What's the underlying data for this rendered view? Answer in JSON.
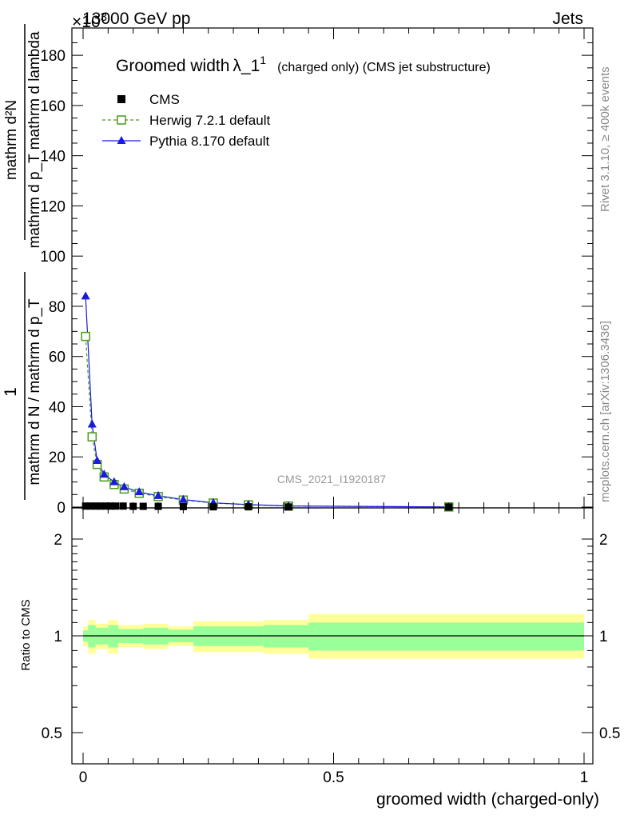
{
  "header": {
    "energy": "13000 GeV pp",
    "process": "Jets",
    "exponent": "×10",
    "exponent_power": "3"
  },
  "side": {
    "rivet": "Rivet 3.1.10, ≥ 400k events",
    "mcplots": "mcplots.cern.ch [arXiv:1306.3436]"
  },
  "watermark": "CMS_2021_I1920187",
  "chart_data": [
    {
      "type": "line",
      "title": "Groomed width λ_1¹ (charged only) (CMS jet substructure)",
      "title_main": "Groomed width",
      "title_lambda": "λ_1",
      "title_sup": "1",
      "title_rest": "(charged only) (CMS jet substructure)",
      "ylabel_top": "1",
      "ylabel_bottom": "mathrm d N / mathrm d p_T",
      "ylabel_frac_num": "mathrm d²N",
      "ylabel_frac_den": "mathrm d p_T mathrm d lambda",
      "xlim": [
        0,
        1
      ],
      "ylim": [
        0,
        190
      ],
      "y_ticks": [
        0,
        20,
        40,
        60,
        80,
        100,
        120,
        140,
        160,
        180
      ],
      "y_unit_scale": "×10³",
      "legend_position": "top-left",
      "series": [
        {
          "name": "CMS",
          "color": "#000000",
          "marker": "filled-square",
          "x": [
            0.005,
            0.015,
            0.025,
            0.035,
            0.045,
            0.055,
            0.065,
            0.08,
            0.1,
            0.12,
            0.15,
            0.2,
            0.26,
            0.33,
            0.41,
            0.73
          ],
          "y": [
            0.4,
            0.4,
            0.4,
            0.4,
            0.4,
            0.4,
            0.4,
            0.4,
            0.3,
            0.3,
            0.3,
            0.2,
            0.1,
            0.1,
            0.05,
            0.01
          ]
        },
        {
          "name": "Herwig 7.2.1 default",
          "color": "#4a9a1a",
          "marker": "open-square",
          "style": "dashed",
          "x": [
            0.005,
            0.018,
            0.028,
            0.042,
            0.062,
            0.082,
            0.112,
            0.15,
            0.2,
            0.26,
            0.33,
            0.41,
            0.73
          ],
          "y": [
            68,
            28,
            17,
            12,
            9,
            7.2,
            5.5,
            4.2,
            2.8,
            1.6,
            0.9,
            0.4,
            0.05
          ]
        },
        {
          "name": "Pythia 8.170 default",
          "color": "#1a1ae0",
          "marker": "filled-triangle",
          "style": "solid",
          "x": [
            0.005,
            0.018,
            0.028,
            0.042,
            0.062,
            0.082,
            0.112,
            0.15,
            0.2,
            0.26,
            0.33,
            0.41,
            0.73
          ],
          "y": [
            84,
            33,
            18.5,
            13,
            10,
            8,
            6,
            4.5,
            3,
            1.7,
            1.0,
            0.45,
            0.05
          ]
        }
      ]
    },
    {
      "type": "area",
      "ylabel": "Ratio to CMS",
      "xlabel": "groomed width (charged-only)",
      "xlim": [
        0,
        1
      ],
      "ylim": [
        0.4,
        2.3
      ],
      "y_scale": "log",
      "x_ticks": [
        0,
        0.5,
        1
      ],
      "x_tick_labels": [
        "0",
        "0.5",
        "1"
      ],
      "y_ticks": [
        0.5,
        1,
        2
      ],
      "y_tick_labels": [
        "0.5",
        "1",
        "2"
      ],
      "reference": 1,
      "bins": [
        {
          "x0": 0.0,
          "x1": 0.01,
          "inner": [
            0.96,
            1.04
          ],
          "outer": [
            0.93,
            1.07
          ]
        },
        {
          "x0": 0.01,
          "x1": 0.025,
          "inner": [
            0.92,
            1.08
          ],
          "outer": [
            0.88,
            1.12
          ]
        },
        {
          "x0": 0.025,
          "x1": 0.05,
          "inner": [
            0.94,
            1.06
          ],
          "outer": [
            0.91,
            1.09
          ]
        },
        {
          "x0": 0.05,
          "x1": 0.07,
          "inner": [
            0.92,
            1.08
          ],
          "outer": [
            0.88,
            1.12
          ]
        },
        {
          "x0": 0.07,
          "x1": 0.12,
          "inner": [
            0.95,
            1.05
          ],
          "outer": [
            0.92,
            1.08
          ]
        },
        {
          "x0": 0.12,
          "x1": 0.17,
          "inner": [
            0.94,
            1.06
          ],
          "outer": [
            0.91,
            1.09
          ]
        },
        {
          "x0": 0.17,
          "x1": 0.22,
          "inner": [
            0.955,
            1.045
          ],
          "outer": [
            0.93,
            1.07
          ]
        },
        {
          "x0": 0.22,
          "x1": 0.36,
          "inner": [
            0.93,
            1.07
          ],
          "outer": [
            0.89,
            1.11
          ]
        },
        {
          "x0": 0.36,
          "x1": 0.45,
          "inner": [
            0.92,
            1.08
          ],
          "outer": [
            0.88,
            1.12
          ]
        },
        {
          "x0": 0.45,
          "x1": 1.0,
          "inner": [
            0.9,
            1.1
          ],
          "outer": [
            0.85,
            1.17
          ]
        }
      ],
      "colors": {
        "inner": "#99ff99",
        "outer": "#ffff99"
      }
    }
  ]
}
